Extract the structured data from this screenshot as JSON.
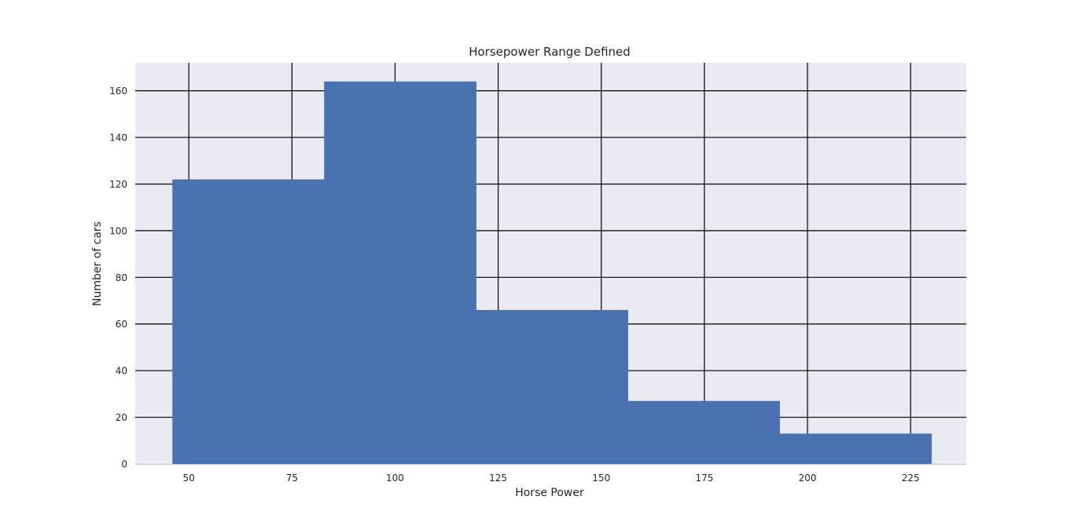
{
  "chart_data": {
    "type": "bar",
    "title": "Horsepower Range Defined",
    "xlabel": "Horse Power",
    "ylabel": "Number of cars",
    "xlim": [
      37,
      238.5
    ],
    "ylim": [
      0,
      172
    ],
    "grid": true,
    "x_ticks": [
      50,
      75,
      100,
      125,
      150,
      175,
      200,
      225
    ],
    "y_ticks": [
      0,
      20,
      40,
      60,
      80,
      100,
      120,
      140,
      160
    ],
    "x_tick_labels": [
      "50",
      "75",
      "100",
      "125",
      "150",
      "175",
      "200",
      "225"
    ],
    "y_tick_labels": [
      "0",
      "20",
      "40",
      "60",
      "80",
      "100",
      "120",
      "140",
      "160"
    ],
    "bins": [
      {
        "start": 46,
        "end": 82.8,
        "count": 122
      },
      {
        "start": 82.8,
        "end": 119.6,
        "count": 164
      },
      {
        "start": 119.6,
        "end": 156.4,
        "count": 66
      },
      {
        "start": 156.4,
        "end": 193.2,
        "count": 27
      },
      {
        "start": 193.2,
        "end": 230,
        "count": 13
      }
    ],
    "colors": {
      "bar": "#4a72b0",
      "plot_background": "#eaeaf2",
      "grid": "#000000"
    }
  }
}
